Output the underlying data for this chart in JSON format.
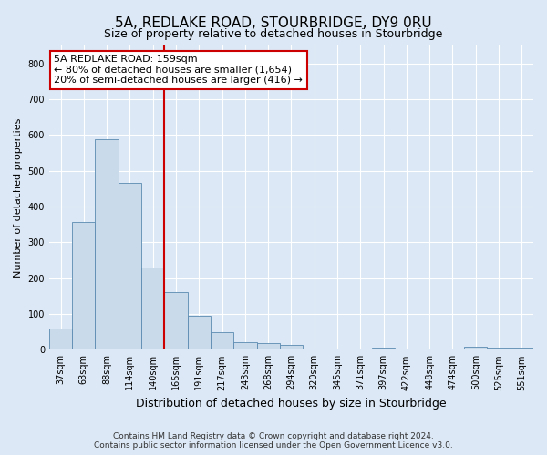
{
  "title": "5A, REDLAKE ROAD, STOURBRIDGE, DY9 0RU",
  "subtitle": "Size of property relative to detached houses in Stourbridge",
  "xlabel": "Distribution of detached houses by size in Stourbridge",
  "ylabel": "Number of detached properties",
  "footer_line1": "Contains HM Land Registry data © Crown copyright and database right 2024.",
  "footer_line2": "Contains public sector information licensed under the Open Government Licence v3.0.",
  "categories": [
    "37sqm",
    "63sqm",
    "88sqm",
    "114sqm",
    "140sqm",
    "165sqm",
    "191sqm",
    "217sqm",
    "243sqm",
    "268sqm",
    "294sqm",
    "320sqm",
    "345sqm",
    "371sqm",
    "397sqm",
    "422sqm",
    "448sqm",
    "474sqm",
    "500sqm",
    "525sqm",
    "551sqm"
  ],
  "values": [
    60,
    357,
    588,
    467,
    230,
    160,
    95,
    48,
    22,
    18,
    13,
    0,
    0,
    0,
    5,
    0,
    0,
    0,
    8,
    6,
    5
  ],
  "bar_color": "#c9daea",
  "bar_edge_color": "#5a8ab0",
  "red_line_x": 4.5,
  "ylim": [
    0,
    850
  ],
  "yticks": [
    0,
    100,
    200,
    300,
    400,
    500,
    600,
    700,
    800
  ],
  "annotation_text_line1": "5A REDLAKE ROAD: 159sqm",
  "annotation_text_line2": "← 80% of detached houses are smaller (1,654)",
  "annotation_text_line3": "20% of semi-detached houses are larger (416) →",
  "annotation_box_color": "#ffffff",
  "annotation_box_edge_color": "#cc0000",
  "bg_color": "#dce8f5",
  "plot_bg_color": "#dce8f5",
  "grid_color": "#ffffff",
  "title_fontsize": 11,
  "subtitle_fontsize": 9,
  "tick_fontsize": 7,
  "ylabel_fontsize": 8,
  "xlabel_fontsize": 9,
  "annotation_fontsize": 8,
  "footer_fontsize": 6.5
}
